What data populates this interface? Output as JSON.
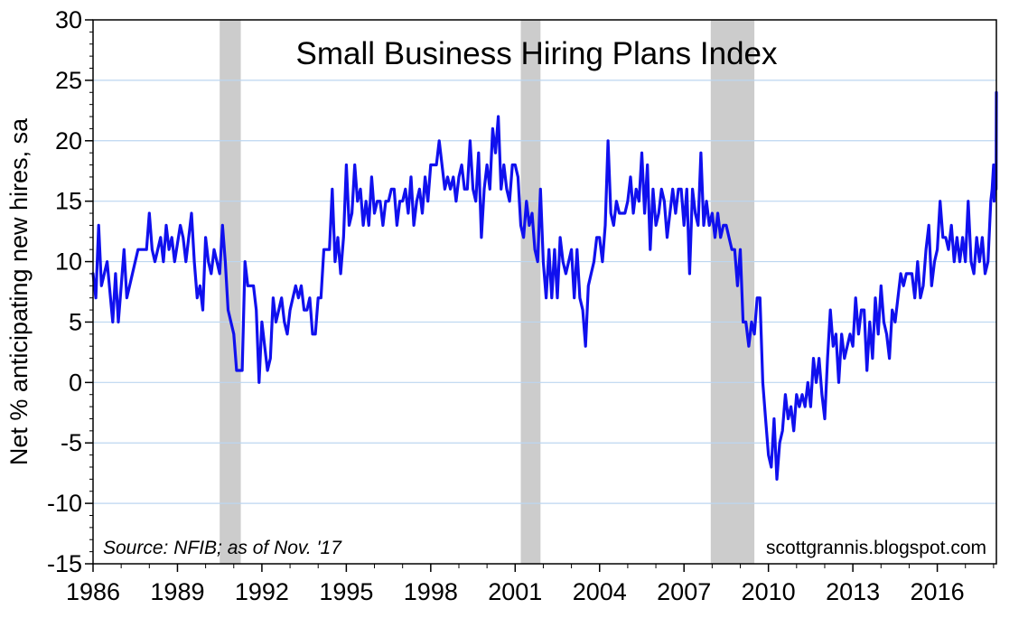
{
  "chart_data": {
    "type": "line",
    "title": "Small Business Hiring Plans Index",
    "ylabel": "Net % anticipating new hires, sa",
    "xlabel": "",
    "xlim": [
      1986,
      2018.1
    ],
    "ylim": [
      -15,
      30
    ],
    "x_ticks": [
      "1986",
      "1989",
      "1992",
      "1995",
      "1998",
      "2001",
      "2004",
      "2007",
      "2010",
      "2013",
      "2016"
    ],
    "y_ticks": [
      "30",
      "25",
      "20",
      "15",
      "10",
      "5",
      "0",
      "-5",
      "-10",
      "-15"
    ],
    "grid": true,
    "source_note": "Source: NFIB; as of Nov. '17",
    "watermark": "scottgrannis.blogspot.com",
    "colors": {
      "line": "#1010ee",
      "recession": "#cccccc",
      "grid": "#bcd6f0"
    },
    "recession_bands": [
      {
        "start": 1990.5,
        "end": 1991.25
      },
      {
        "start": 2001.2,
        "end": 2001.9
      },
      {
        "start": 2007.95,
        "end": 2009.5
      }
    ],
    "series": [
      {
        "values": [
          [
            1986.0,
            9
          ],
          [
            1986.1,
            7
          ],
          [
            1986.2,
            13
          ],
          [
            1986.3,
            8
          ],
          [
            1986.5,
            10
          ],
          [
            1986.7,
            5
          ],
          [
            1986.8,
            9
          ],
          [
            1986.9,
            5
          ],
          [
            1987.0,
            8
          ],
          [
            1987.1,
            11
          ],
          [
            1987.2,
            7
          ],
          [
            1987.4,
            9
          ],
          [
            1987.6,
            11
          ],
          [
            1987.9,
            11
          ],
          [
            1988.0,
            14
          ],
          [
            1988.1,
            11
          ],
          [
            1988.2,
            10
          ],
          [
            1988.4,
            12
          ],
          [
            1988.5,
            10
          ],
          [
            1988.6,
            13
          ],
          [
            1988.7,
            11
          ],
          [
            1988.8,
            12
          ],
          [
            1988.9,
            10
          ],
          [
            1989.1,
            13
          ],
          [
            1989.2,
            12
          ],
          [
            1989.3,
            10
          ],
          [
            1989.5,
            14
          ],
          [
            1989.6,
            10
          ],
          [
            1989.7,
            7
          ],
          [
            1989.8,
            8
          ],
          [
            1989.9,
            6
          ],
          [
            1990.0,
            12
          ],
          [
            1990.1,
            10
          ],
          [
            1990.2,
            9
          ],
          [
            1990.3,
            11
          ],
          [
            1990.5,
            9
          ],
          [
            1990.6,
            13
          ],
          [
            1990.7,
            10
          ],
          [
            1990.8,
            6
          ],
          [
            1991.0,
            4
          ],
          [
            1991.1,
            1
          ],
          [
            1991.3,
            1
          ],
          [
            1991.4,
            10
          ],
          [
            1991.5,
            8
          ],
          [
            1991.7,
            8
          ],
          [
            1991.8,
            6
          ],
          [
            1991.9,
            0
          ],
          [
            1992.0,
            5
          ],
          [
            1992.1,
            3
          ],
          [
            1992.2,
            1
          ],
          [
            1992.3,
            2
          ],
          [
            1992.4,
            7
          ],
          [
            1992.5,
            5
          ],
          [
            1992.6,
            6
          ],
          [
            1992.7,
            7
          ],
          [
            1992.8,
            5
          ],
          [
            1992.9,
            4
          ],
          [
            1993.0,
            6
          ],
          [
            1993.2,
            8
          ],
          [
            1993.3,
            7
          ],
          [
            1993.4,
            8
          ],
          [
            1993.5,
            6
          ],
          [
            1993.6,
            6
          ],
          [
            1993.7,
            7
          ],
          [
            1993.8,
            4
          ],
          [
            1993.9,
            4
          ],
          [
            1994.0,
            7
          ],
          [
            1994.1,
            7
          ],
          [
            1994.2,
            11
          ],
          [
            1994.3,
            11
          ],
          [
            1994.4,
            11
          ],
          [
            1994.5,
            16
          ],
          [
            1994.6,
            10
          ],
          [
            1994.7,
            12
          ],
          [
            1994.8,
            9
          ],
          [
            1994.9,
            12
          ],
          [
            1995.0,
            18
          ],
          [
            1995.1,
            13
          ],
          [
            1995.2,
            14
          ],
          [
            1995.3,
            18
          ],
          [
            1995.4,
            15
          ],
          [
            1995.5,
            16
          ],
          [
            1995.6,
            13
          ],
          [
            1995.7,
            15
          ],
          [
            1995.8,
            13
          ],
          [
            1995.9,
            17
          ],
          [
            1996.0,
            14
          ],
          [
            1996.1,
            15
          ],
          [
            1996.2,
            15
          ],
          [
            1996.3,
            13
          ],
          [
            1996.4,
            15
          ],
          [
            1996.5,
            15
          ],
          [
            1996.6,
            16
          ],
          [
            1996.7,
            16
          ],
          [
            1996.8,
            13
          ],
          [
            1996.9,
            15
          ],
          [
            1997.0,
            15
          ],
          [
            1997.1,
            16
          ],
          [
            1997.2,
            14
          ],
          [
            1997.3,
            17
          ],
          [
            1997.4,
            13
          ],
          [
            1997.5,
            15
          ],
          [
            1997.6,
            16
          ],
          [
            1997.7,
            14
          ],
          [
            1997.8,
            17
          ],
          [
            1997.9,
            15
          ],
          [
            1998.0,
            18
          ],
          [
            1998.1,
            18
          ],
          [
            1998.2,
            18
          ],
          [
            1998.3,
            20
          ],
          [
            1998.4,
            18
          ],
          [
            1998.5,
            16
          ],
          [
            1998.6,
            17
          ],
          [
            1998.7,
            16
          ],
          [
            1998.8,
            17
          ],
          [
            1998.9,
            15
          ],
          [
            1999.0,
            17
          ],
          [
            1999.1,
            18
          ],
          [
            1999.2,
            16
          ],
          [
            1999.3,
            16
          ],
          [
            1999.4,
            20
          ],
          [
            1999.5,
            16
          ],
          [
            1999.6,
            15
          ],
          [
            1999.7,
            19
          ],
          [
            1999.8,
            12
          ],
          [
            1999.9,
            16
          ],
          [
            2000.0,
            18
          ],
          [
            2000.1,
            16
          ],
          [
            2000.2,
            21
          ],
          [
            2000.3,
            19
          ],
          [
            2000.4,
            22
          ],
          [
            2000.5,
            16
          ],
          [
            2000.6,
            18
          ],
          [
            2000.7,
            16
          ],
          [
            2000.8,
            15
          ],
          [
            2000.9,
            18
          ],
          [
            2001.0,
            18
          ],
          [
            2001.1,
            17
          ],
          [
            2001.2,
            13
          ],
          [
            2001.3,
            12
          ],
          [
            2001.4,
            15
          ],
          [
            2001.5,
            13
          ],
          [
            2001.6,
            14
          ],
          [
            2001.7,
            11
          ],
          [
            2001.8,
            10
          ],
          [
            2001.9,
            16
          ],
          [
            2002.0,
            10
          ],
          [
            2002.1,
            7
          ],
          [
            2002.2,
            11
          ],
          [
            2002.3,
            7
          ],
          [
            2002.4,
            11
          ],
          [
            2002.5,
            7
          ],
          [
            2002.6,
            12
          ],
          [
            2002.7,
            10
          ],
          [
            2002.8,
            9
          ],
          [
            2002.9,
            10
          ],
          [
            2003.0,
            11
          ],
          [
            2003.1,
            7
          ],
          [
            2003.2,
            11
          ],
          [
            2003.3,
            7
          ],
          [
            2003.4,
            6
          ],
          [
            2003.5,
            3
          ],
          [
            2003.6,
            8
          ],
          [
            2003.7,
            9
          ],
          [
            2003.8,
            10
          ],
          [
            2003.9,
            12
          ],
          [
            2004.0,
            12
          ],
          [
            2004.1,
            10
          ],
          [
            2004.2,
            13
          ],
          [
            2004.3,
            20
          ],
          [
            2004.4,
            14
          ],
          [
            2004.5,
            13
          ],
          [
            2004.6,
            15
          ],
          [
            2004.7,
            14
          ],
          [
            2004.8,
            14
          ],
          [
            2004.9,
            14
          ],
          [
            2005.0,
            15
          ],
          [
            2005.1,
            17
          ],
          [
            2005.2,
            14
          ],
          [
            2005.3,
            16
          ],
          [
            2005.4,
            15
          ],
          [
            2005.5,
            19
          ],
          [
            2005.6,
            14
          ],
          [
            2005.7,
            18
          ],
          [
            2005.8,
            11
          ],
          [
            2005.9,
            16
          ],
          [
            2006.0,
            13
          ],
          [
            2006.1,
            14
          ],
          [
            2006.2,
            16
          ],
          [
            2006.3,
            15
          ],
          [
            2006.4,
            12
          ],
          [
            2006.5,
            14
          ],
          [
            2006.6,
            16
          ],
          [
            2006.7,
            14
          ],
          [
            2006.8,
            16
          ],
          [
            2006.9,
            16
          ],
          [
            2007.0,
            13
          ],
          [
            2007.1,
            16
          ],
          [
            2007.2,
            9
          ],
          [
            2007.3,
            16
          ],
          [
            2007.4,
            14
          ],
          [
            2007.5,
            13
          ],
          [
            2007.6,
            19
          ],
          [
            2007.7,
            13
          ],
          [
            2007.8,
            15
          ],
          [
            2007.9,
            13
          ],
          [
            2008.0,
            14
          ],
          [
            2008.1,
            12
          ],
          [
            2008.2,
            14
          ],
          [
            2008.3,
            12
          ],
          [
            2008.4,
            13
          ],
          [
            2008.5,
            13
          ],
          [
            2008.6,
            12
          ],
          [
            2008.7,
            11
          ],
          [
            2008.8,
            11
          ],
          [
            2008.9,
            8
          ],
          [
            2009.0,
            11
          ],
          [
            2009.1,
            5
          ],
          [
            2009.2,
            5
          ],
          [
            2009.3,
            3
          ],
          [
            2009.4,
            5
          ],
          [
            2009.5,
            4
          ],
          [
            2009.6,
            7
          ],
          [
            2009.7,
            7
          ],
          [
            2009.8,
            0
          ],
          [
            2009.9,
            -3
          ],
          [
            2010.0,
            -6
          ],
          [
            2010.1,
            -7
          ],
          [
            2010.2,
            -3
          ],
          [
            2010.3,
            -8
          ],
          [
            2010.4,
            -5
          ],
          [
            2010.5,
            -4
          ],
          [
            2010.6,
            -1
          ],
          [
            2010.7,
            -3
          ],
          [
            2010.8,
            -2
          ],
          [
            2010.9,
            -4
          ],
          [
            2011.0,
            -1
          ],
          [
            2011.1,
            -2
          ],
          [
            2011.2,
            -1
          ],
          [
            2011.3,
            -2
          ],
          [
            2011.4,
            0
          ],
          [
            2011.5,
            -2
          ],
          [
            2011.6,
            2
          ],
          [
            2011.7,
            0
          ],
          [
            2011.8,
            2
          ],
          [
            2011.9,
            -1
          ],
          [
            2012.0,
            -3
          ],
          [
            2012.1,
            2
          ],
          [
            2012.2,
            6
          ],
          [
            2012.3,
            3
          ],
          [
            2012.4,
            4
          ],
          [
            2012.5,
            0
          ],
          [
            2012.6,
            4
          ],
          [
            2012.7,
            2
          ],
          [
            2012.8,
            3
          ],
          [
            2012.9,
            4
          ],
          [
            2013.0,
            3
          ],
          [
            2013.1,
            7
          ],
          [
            2013.2,
            4
          ],
          [
            2013.3,
            6
          ],
          [
            2013.4,
            6
          ],
          [
            2013.5,
            1
          ],
          [
            2013.6,
            5
          ],
          [
            2013.7,
            2
          ],
          [
            2013.8,
            7
          ],
          [
            2013.9,
            4
          ],
          [
            2014.0,
            8
          ],
          [
            2014.1,
            5
          ],
          [
            2014.2,
            4
          ],
          [
            2014.3,
            2
          ],
          [
            2014.4,
            6
          ],
          [
            2014.5,
            5
          ],
          [
            2014.6,
            7
          ],
          [
            2014.7,
            9
          ],
          [
            2014.8,
            8
          ],
          [
            2014.9,
            9
          ],
          [
            2015.0,
            9
          ],
          [
            2015.1,
            9
          ],
          [
            2015.2,
            7
          ],
          [
            2015.3,
            10
          ],
          [
            2015.4,
            7
          ],
          [
            2015.5,
            8
          ],
          [
            2015.6,
            11
          ],
          [
            2015.7,
            13
          ],
          [
            2015.8,
            8
          ],
          [
            2015.9,
            10
          ],
          [
            2016.0,
            11
          ],
          [
            2016.1,
            15
          ],
          [
            2016.2,
            12
          ],
          [
            2016.3,
            12
          ],
          [
            2016.4,
            11
          ],
          [
            2016.5,
            13
          ],
          [
            2016.6,
            10
          ],
          [
            2016.7,
            12
          ],
          [
            2016.8,
            10
          ],
          [
            2016.9,
            12
          ],
          [
            2017.0,
            10
          ],
          [
            2017.1,
            15
          ],
          [
            2017.2,
            10
          ],
          [
            2017.3,
            9
          ],
          [
            2017.4,
            12
          ],
          [
            2017.5,
            10
          ],
          [
            2017.6,
            12
          ],
          [
            2017.7,
            9
          ],
          [
            2017.8,
            10
          ],
          [
            2017.9,
            15
          ],
          [
            2017.95,
            16
          ],
          [
            2018.0,
            18
          ],
          [
            2018.02,
            15
          ],
          [
            2018.04,
            16
          ],
          [
            2018.06,
            16
          ],
          [
            2018.07,
            17
          ],
          [
            2018.08,
            18
          ],
          [
            2018.09,
            16
          ],
          [
            2018.1,
            24
          ]
        ]
      }
    ]
  }
}
